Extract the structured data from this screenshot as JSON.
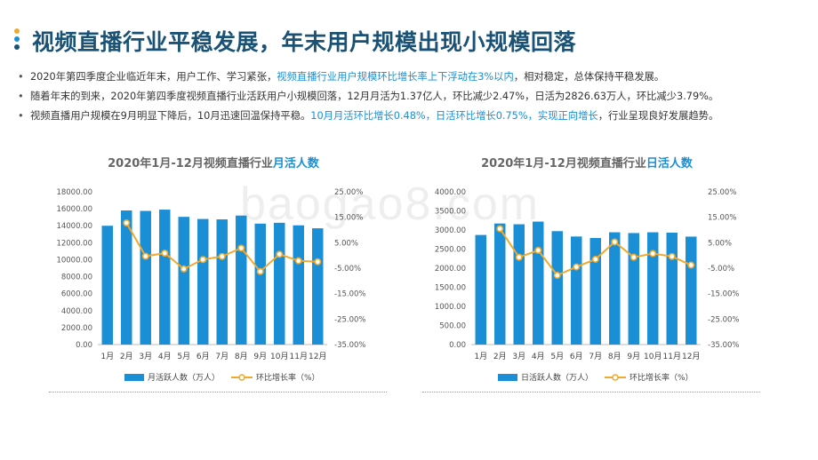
{
  "title": "视频直播行业平稳发展，年末用户规模出现小规模回落",
  "accent_colors": {
    "dot1": "#f0a92e",
    "dot2": "#1a8fd6",
    "dot3": "#1a5276",
    "bar": "#1a8fd6",
    "line": "#f0a92e"
  },
  "bullets": [
    {
      "pre": "2020年第四季度企业临近年末，用户工作、学习紧张，",
      "hl": "视频直播行业用户规模环比增长率上下浮动在3%以内",
      "post": "，相对稳定，总体保持平稳发展。"
    },
    {
      "pre": "随着年末的到来，2020年第四季度视频直播行业活跃用户小规模回落，12月月活为1.37亿人，环比减少2.47%，日活为2826.63万人，环比减少3.79%。",
      "hl": "",
      "post": ""
    },
    {
      "pre": "视频直播用户规模在9月明显下降后，10月迅速回温保持平稳。",
      "hl": "10月月活环比增长0.48%，日活环比增长0.75%，实现正向增长",
      "post": "，行业呈现良好发展趋势。"
    }
  ],
  "watermark": "baogao8.com",
  "chart_data": [
    {
      "type": "bar",
      "title_pre": "2020年1月-12月视频直播行业",
      "title_accent": "月活人数",
      "categories": [
        "1月",
        "2月",
        "3月",
        "4月",
        "5月",
        "6月",
        "7月",
        "8月",
        "9月",
        "10月",
        "11月",
        "12月"
      ],
      "series": [
        {
          "name": "月活跃人数（万人）",
          "type": "bar",
          "axis": "left",
          "values": [
            14000,
            15800,
            15750,
            15900,
            15050,
            14800,
            14750,
            15200,
            14250,
            14350,
            14050,
            13700
          ]
        },
        {
          "name": "环比增长率（%）",
          "type": "line",
          "axis": "right",
          "values": [
            null,
            12.8,
            -0.3,
            0.9,
            -5.3,
            -1.6,
            -0.4,
            2.9,
            -6.3,
            0.48,
            -2.1,
            -2.47
          ]
        }
      ],
      "left_ticks": [
        "18000.00",
        "16000.00",
        "14000.00",
        "12000.00",
        "10000.00",
        "8000.00",
        "6000.00",
        "4000.00",
        "2000.00",
        "0.00"
      ],
      "right_ticks": [
        "25.00%",
        "15.00%",
        "5.00%",
        "-5.00%",
        "-15.00%",
        "-25.00%",
        "-35.00%"
      ],
      "ylim": [
        0,
        18000
      ],
      "y2lim": [
        -35,
        25
      ]
    },
    {
      "type": "bar",
      "title_pre": "2020年1月-12月视频直播行业",
      "title_accent": "日活人数",
      "categories": [
        "1月",
        "2月",
        "3月",
        "4月",
        "5月",
        "6月",
        "7月",
        "8月",
        "9月",
        "10月",
        "11月",
        "12月"
      ],
      "series": [
        {
          "name": "日活跃人数（万人）",
          "type": "bar",
          "axis": "left",
          "values": [
            2870,
            3170,
            3150,
            3220,
            2970,
            2830,
            2790,
            2940,
            2920,
            2940,
            2930,
            2826.63
          ]
        },
        {
          "name": "环比增长率（%）",
          "type": "line",
          "axis": "right",
          "values": [
            null,
            10.5,
            -0.7,
            2.0,
            -7.8,
            -4.5,
            -1.5,
            5.3,
            -0.7,
            0.75,
            -0.4,
            -3.79
          ]
        }
      ],
      "left_ticks": [
        "4000.00",
        "3500.00",
        "3000.00",
        "2500.00",
        "2000.00",
        "1500.00",
        "1000.00",
        "500.00",
        "0.00"
      ],
      "right_ticks": [
        "25.00%",
        "15.00%",
        "5.00%",
        "-5.00%",
        "-15.00%",
        "-25.00%",
        "-35.00%"
      ],
      "ylim": [
        0,
        4000
      ],
      "y2lim": [
        -35,
        25
      ]
    }
  ]
}
